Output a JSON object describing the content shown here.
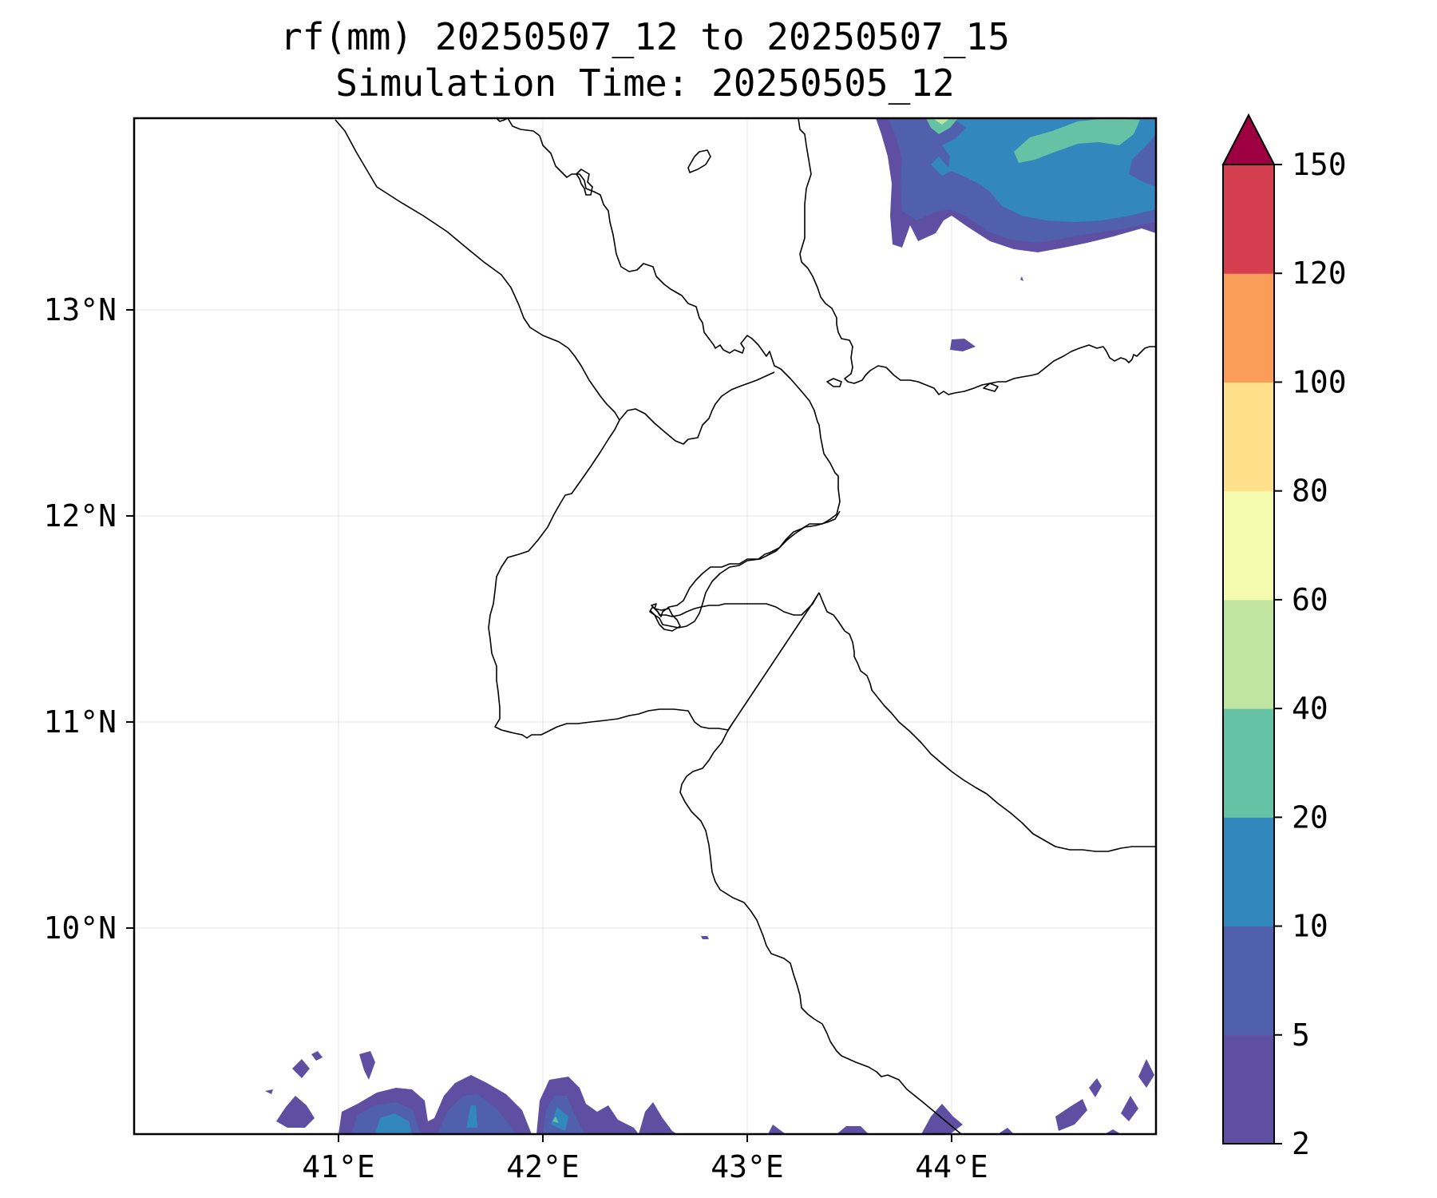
{
  "map": {
    "title_line1": "rf(mm) 20250507_12 to 20250507_15",
    "title_line2": "Simulation Time: 20250505_12",
    "lon_range": [
      40.0,
      45.0
    ],
    "lat_range": [
      9.0,
      13.93
    ],
    "lon_ticks": [
      {
        "value": 41,
        "label": "41°E"
      },
      {
        "value": 42,
        "label": "42°E"
      },
      {
        "value": 43,
        "label": "43°E"
      },
      {
        "value": 44,
        "label": "44°E"
      }
    ],
    "lat_ticks": [
      {
        "value": 13,
        "label": "13°N"
      },
      {
        "value": 12,
        "label": "12°N"
      },
      {
        "value": 11,
        "label": "11°N"
      },
      {
        "value": 10,
        "label": "10°N"
      }
    ],
    "grid": true
  },
  "colorbar": {
    "levels": [
      "2",
      "5",
      "10",
      "20",
      "40",
      "60",
      "80",
      "100",
      "120",
      "150"
    ],
    "colors": [
      "#5e4fa2",
      "#5060ad",
      "#3288bd",
      "#66c2a5",
      "#bfe5a0",
      "#f5fbae",
      "#fee08b",
      "#f99d59",
      "#d53e4f"
    ],
    "extend_color": "#9e0142",
    "extend": "max"
  }
}
